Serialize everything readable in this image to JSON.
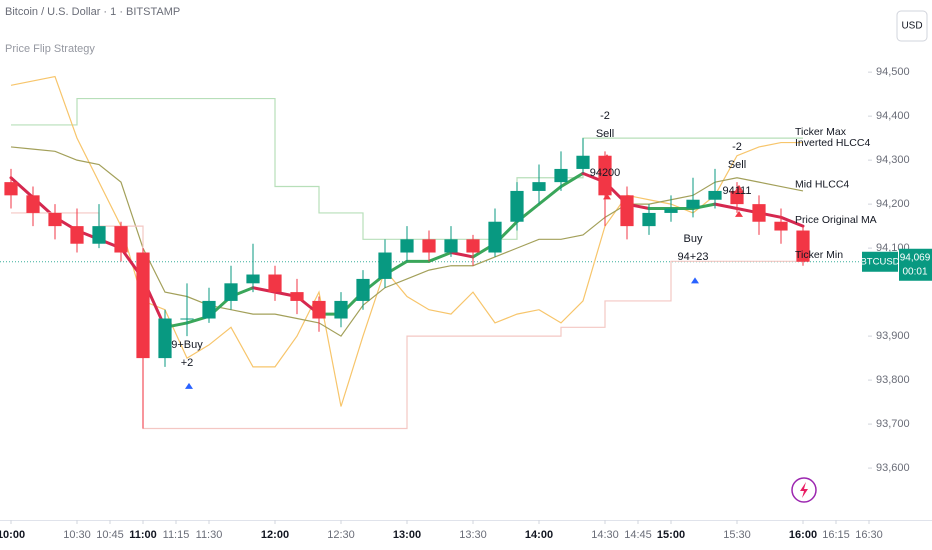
{
  "chart_data": {
    "type": "candlestick",
    "title": "Bitcoin / U.S. Dollar · 1 · BITSTAMP",
    "subtitle": "Price Flip Strategy",
    "currency": "USD",
    "symbol": "BTCUSD",
    "last_price": {
      "value": 94069,
      "label": "94,069"
    },
    "countdown": "00:01",
    "up_color": "#089981",
    "down_color": "#f23645",
    "x": [
      "10:00",
      "10:10",
      "10:20",
      "10:30",
      "10:40",
      "10:50",
      "11:00",
      "11:10",
      "11:20",
      "11:30",
      "11:40",
      "11:50",
      "12:00",
      "12:10",
      "12:20",
      "12:30",
      "12:40",
      "12:50",
      "13:00",
      "13:10",
      "13:20",
      "13:30",
      "13:40",
      "13:50",
      "14:00",
      "14:10",
      "14:20",
      "14:30",
      "14:40",
      "14:50",
      "15:00",
      "15:10",
      "15:20",
      "15:30",
      "15:40",
      "15:50",
      "16:00"
    ],
    "open": [
      94250,
      94220,
      94180,
      94150,
      94110,
      94150,
      94090,
      93850,
      93940,
      93940,
      93980,
      94020,
      94040,
      94000,
      93980,
      93940,
      93980,
      94030,
      94090,
      94120,
      94090,
      94120,
      94090,
      94160,
      94230,
      94250,
      94280,
      94310,
      94220,
      94150,
      94180,
      94190,
      94210,
      94230,
      94200,
      94160,
      94140
    ],
    "high": [
      94280,
      94240,
      94200,
      94190,
      94200,
      94160,
      94100,
      93960,
      94020,
      94010,
      94060,
      94110,
      94060,
      94030,
      93990,
      94000,
      94050,
      94120,
      94150,
      94140,
      94150,
      94130,
      94190,
      94250,
      94290,
      94320,
      94350,
      94320,
      94240,
      94200,
      94220,
      94260,
      94280,
      94250,
      94220,
      94190,
      94150
    ],
    "low": [
      94190,
      94150,
      94120,
      94090,
      94100,
      94070,
      93690,
      93830,
      93900,
      93930,
      93960,
      94000,
      93980,
      93950,
      93910,
      93920,
      93960,
      94010,
      94070,
      94070,
      94080,
      94060,
      94080,
      94140,
      94200,
      94230,
      94270,
      94150,
      94120,
      94130,
      94160,
      94170,
      94190,
      94180,
      94130,
      94110,
      94060
    ],
    "close": [
      94220,
      94180,
      94150,
      94110,
      94150,
      94090,
      93850,
      93940,
      93940,
      93980,
      94020,
      94040,
      94000,
      93980,
      93940,
      93980,
      94030,
      94090,
      94120,
      94090,
      94120,
      94090,
      94160,
      94230,
      94250,
      94280,
      94310,
      94220,
      94150,
      94180,
      94190,
      94210,
      94230,
      94200,
      94160,
      94140,
      94069
    ],
    "series": [
      {
        "name": "Ticker Max",
        "color": "#b7dfb9",
        "label_color": "#4caf50",
        "style": "step",
        "values": [
          94380,
          94380,
          94380,
          94440,
          94440,
          94440,
          94440,
          94440,
          94440,
          94440,
          94440,
          94440,
          94240,
          94240,
          94180,
          94180,
          94120,
          94120,
          94120,
          94120,
          94120,
          94120,
          94120,
          94260,
          94260,
          94260,
          94350,
          94350,
          94350,
          94350,
          94350,
          94350,
          94350,
          94350,
          94350,
          94350,
          94350
        ]
      },
      {
        "name": "Inverted HLCC4",
        "color": "#f7c56b",
        "label_color": "#9c1f3c",
        "style": "line",
        "values": [
          94470,
          94480,
          94490,
          94350,
          94250,
          94150,
          93980,
          93960,
          93850,
          93880,
          93920,
          93830,
          93830,
          93900,
          94000,
          93740,
          93900,
          94050,
          93990,
          93960,
          93950,
          94000,
          93930,
          93950,
          93960,
          93930,
          93980,
          94150,
          94220,
          94210,
          94200,
          94180,
          94220,
          94310,
          94330,
          94340,
          94340
        ]
      },
      {
        "name": "Mid HLCC4",
        "color": "#a3a05a",
        "label_color": "#3f9f7f",
        "style": "line",
        "values": [
          94330,
          94325,
          94320,
          94300,
          94290,
          94250,
          94100,
          94000,
          93990,
          93970,
          93960,
          93950,
          93950,
          93940,
          93930,
          93900,
          93970,
          94010,
          94030,
          94050,
          94060,
          94060,
          94080,
          94100,
          94120,
          94120,
          94130,
          94170,
          94200,
          94200,
          94210,
          94220,
          94250,
          94260,
          94250,
          94240,
          94230
        ]
      },
      {
        "name": "Price Original MA",
        "color": "#d5284f",
        "up_color": "#3aa65a",
        "label_color": "#f5a623",
        "style": "trend",
        "values": [
          94260,
          94215,
          94170,
          94140,
          94120,
          94100,
          94030,
          93920,
          93930,
          93945,
          93990,
          94010,
          94000,
          93990,
          93950,
          93950,
          94000,
          94040,
          94070,
          94070,
          94090,
          94080,
          94110,
          94160,
          94200,
          94240,
          94270,
          94250,
          94200,
          94190,
          94190,
          94190,
          94200,
          94190,
          94180,
          94170,
          94150
        ]
      },
      {
        "name": "Ticker Min",
        "color": "#f4c7c3",
        "label_color": "#e0506a",
        "style": "step",
        "values": [
          94180,
          94180,
          94180,
          94180,
          94150,
          94150,
          93690,
          93690,
          93690,
          93690,
          93690,
          93690,
          93690,
          93690,
          93690,
          93690,
          93690,
          93690,
          93900,
          93900,
          93900,
          93900,
          93900,
          93900,
          93900,
          93920,
          93920,
          93980,
          93980,
          93980,
          94070,
          94070,
          94070,
          94070,
          94070,
          94070,
          94070
        ]
      }
    ],
    "annotations": [
      {
        "lines": [
          "-2",
          "Sell"
        ],
        "x": "14:30",
        "y": 94400,
        "color": "#f23645"
      },
      {
        "lines": [
          "94200"
        ],
        "x": "14:30",
        "y": 94270,
        "color": "#f23645"
      },
      {
        "lines": [
          "-2",
          "Sell"
        ],
        "x": "15:30",
        "y": 94330,
        "color": "#f23645"
      },
      {
        "lines": [
          "94111"
        ],
        "x": "15:30",
        "y": 94230,
        "color": "#f23645"
      },
      {
        "lines": [
          "Buy",
          "94+23"
        ],
        "x": "15:10",
        "y": 94120,
        "color": "#2962ff"
      },
      {
        "lines": [
          "9+Buy",
          "+2"
        ],
        "x": "11:20",
        "y": 93880,
        "color": "#2962ff"
      }
    ],
    "xlim": [
      "09:55",
      "16:55"
    ],
    "xticks": [
      "10:00",
      "10:30",
      "10:45",
      "11:00",
      "11:15",
      "11:30",
      "12:00",
      "12:30",
      "13:00",
      "13:30",
      "14:00",
      "14:30",
      "14:45",
      "15:00",
      "15:30",
      "16:00",
      "16:15",
      "16:30"
    ],
    "ylim": [
      93482,
      94664
    ],
    "yticks": [
      {
        "value": 94500,
        "label": "94,500"
      },
      {
        "value": 94400,
        "label": "94,400"
      },
      {
        "value": 94300,
        "label": "94,300"
      },
      {
        "value": 94200,
        "label": "94,200"
      },
      {
        "value": 94100,
        "label": "94,100"
      },
      {
        "value": 93900,
        "label": "93,900"
      },
      {
        "value": 93800,
        "label": "93,800"
      },
      {
        "value": 93700,
        "label": "93,700"
      },
      {
        "value": 93600,
        "label": "93,600"
      }
    ],
    "grid": false
  }
}
